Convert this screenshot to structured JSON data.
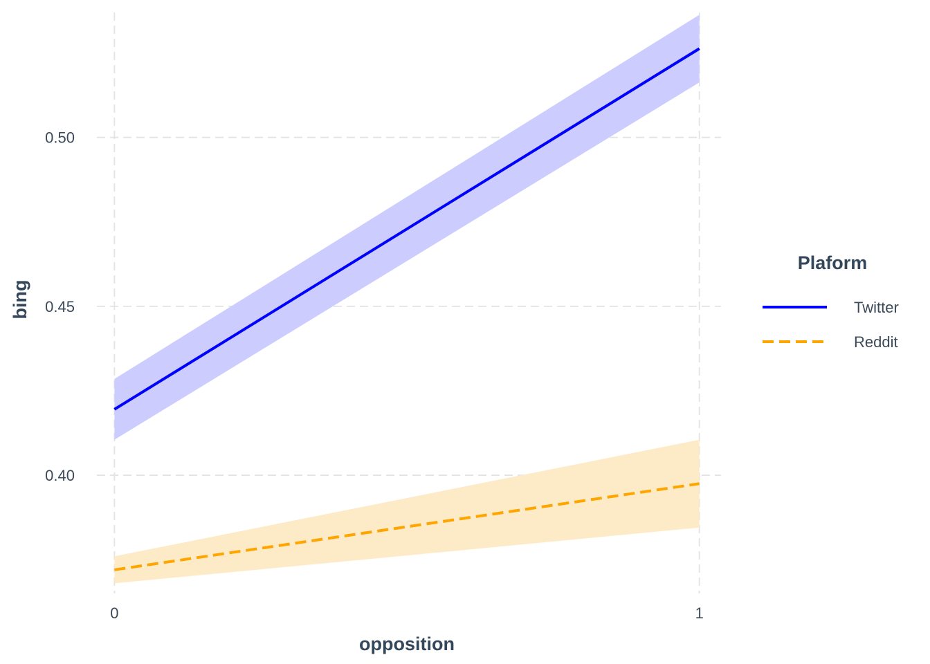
{
  "chart_data": {
    "type": "line",
    "xlabel": "opposition",
    "ylabel": "bing",
    "x": [
      0,
      1
    ],
    "x_ticks": [
      0,
      1
    ],
    "x_tick_labels": [
      "0",
      "1"
    ],
    "xlim": [
      -0.03,
      1.037
    ],
    "y_ticks": [
      0.4,
      0.45,
      0.5
    ],
    "y_tick_labels": [
      "0.40",
      "0.45",
      "0.50"
    ],
    "ylim": [
      0.365,
      0.537
    ],
    "grid": true,
    "legend": {
      "title": "Plaform",
      "position": "right"
    },
    "series": [
      {
        "name": "Twitter",
        "line_style": "solid",
        "color": "#0000ff",
        "ribbon_color": "#ccccff",
        "values": [
          0.4195,
          0.5263
        ],
        "lower": [
          0.4105,
          0.5163
        ],
        "upper": [
          0.4285,
          0.5363
        ]
      },
      {
        "name": "Reddit",
        "line_style": "dashed",
        "color": "#ffa500",
        "ribbon_color": "#fdebc8",
        "values": [
          0.372,
          0.3975
        ],
        "lower": [
          0.368,
          0.3845
        ],
        "upper": [
          0.376,
          0.4105
        ]
      }
    ]
  }
}
